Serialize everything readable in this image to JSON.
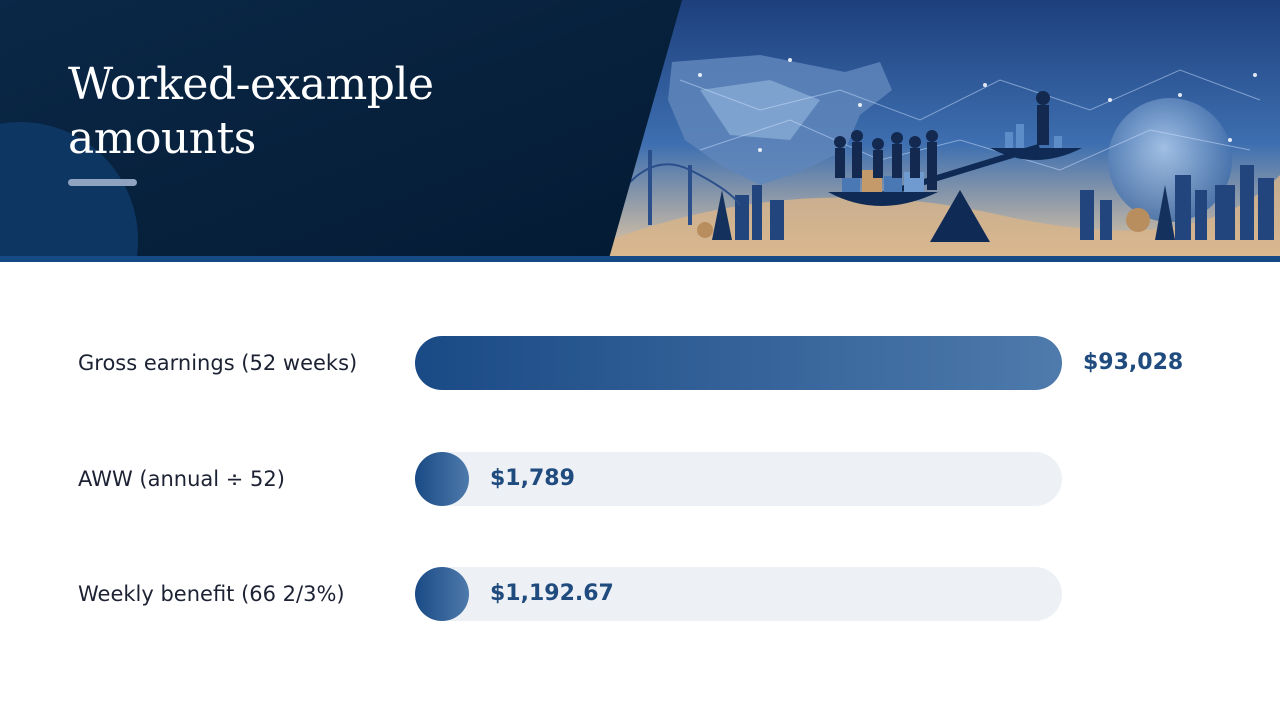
{
  "title": "Worked-example\namounts",
  "colors": {
    "header_dark": "#07223e",
    "bar_start": "#1a4a85",
    "bar_end": "#4e7aac",
    "track": "#edf1f5",
    "value_text": "#1f4b7f",
    "label_text": "#1c2233"
  },
  "chart_data": {
    "type": "bar",
    "orientation": "horizontal",
    "categories": [
      "Gross earnings (52 weeks)",
      "AWW (annual ÷ 52)",
      "Weekly benefit (66 2/3%)"
    ],
    "values": [
      93028,
      1789,
      1192.67
    ],
    "value_labels": [
      "$93,028",
      "$1,789",
      "$1,192.67"
    ],
    "xlim": [
      0,
      93028
    ],
    "grid": false
  }
}
